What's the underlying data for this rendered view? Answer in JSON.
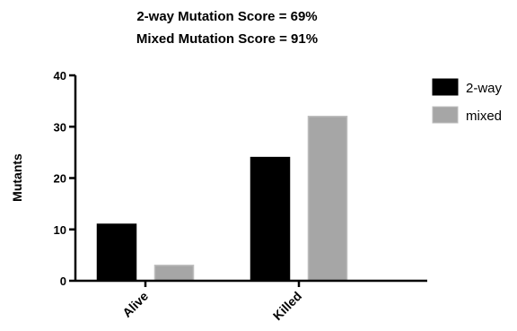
{
  "chart_data": {
    "type": "bar",
    "title_lines": [
      "2-way Mutation Score = 69%",
      "Mixed Mutation Score = 91%"
    ],
    "xlabel": "",
    "ylabel": "Mutants",
    "categories": [
      "Alive",
      "Killed"
    ],
    "series": [
      {
        "name": "2-way",
        "values": [
          11,
          24
        ],
        "color": "#000000"
      },
      {
        "name": "mixed",
        "values": [
          3,
          32
        ],
        "color": "#a6a6a6"
      }
    ],
    "ylim": [
      0,
      40
    ],
    "yticks": [
      0,
      10,
      20,
      30,
      40
    ],
    "grid": false,
    "legend_position": "top-right"
  }
}
